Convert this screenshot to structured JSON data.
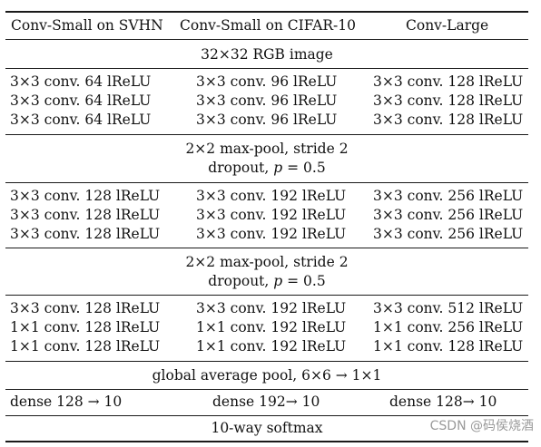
{
  "headers": [
    "Conv-Small on SVHN",
    "Conv-Small on CIFAR-10",
    "Conv-Large"
  ],
  "input_row": "32×32 RGB image",
  "block1": [
    [
      "3×3 conv. 64 lReLU",
      "3×3 conv. 96 lReLU",
      "3×3 conv. 128 lReLU"
    ],
    [
      "3×3 conv. 64 lReLU",
      "3×3 conv. 96 lReLU",
      "3×3 conv. 128 lReLU"
    ],
    [
      "3×3 conv. 64 lReLU",
      "3×3 conv. 96 lReLU",
      "3×3 conv. 128 lReLU"
    ]
  ],
  "pool1": {
    "line1": "2×2 max-pool, stride 2",
    "line2_prefix": "dropout, ",
    "line2_var": "p",
    "line2_suffix": " = 0.5"
  },
  "block2": [
    [
      "3×3 conv. 128 lReLU",
      "3×3 conv. 192 lReLU",
      "3×3 conv. 256 lReLU"
    ],
    [
      "3×3 conv. 128 lReLU",
      "3×3 conv. 192 lReLU",
      "3×3 conv. 256 lReLU"
    ],
    [
      "3×3 conv. 128 lReLU",
      "3×3 conv. 192 lReLU",
      "3×3 conv. 256 lReLU"
    ]
  ],
  "pool2": {
    "line1": "2×2 max-pool, stride 2",
    "line2_prefix": "dropout, ",
    "line2_var": "p",
    "line2_suffix": " = 0.5"
  },
  "block3": [
    [
      "3×3 conv. 128 lReLU",
      "3×3 conv. 192 lReLU",
      "3×3 conv. 512 lReLU"
    ],
    [
      "1×1 conv. 128 lReLU",
      "1×1 conv. 192 lReLU",
      "1×1 conv. 256 lReLU"
    ],
    [
      "1×1 conv. 128 lReLU",
      "1×1 conv. 192 lReLU",
      "1×1 conv. 128 lReLU"
    ]
  ],
  "gap_row": "global average pool, 6×6 → 1×1",
  "dense_row": [
    "dense 128 → 10",
    "dense 192→ 10",
    "dense 128→ 10"
  ],
  "softmax_row": "10-way softmax",
  "watermark": "CSDN @码侯烧酒"
}
